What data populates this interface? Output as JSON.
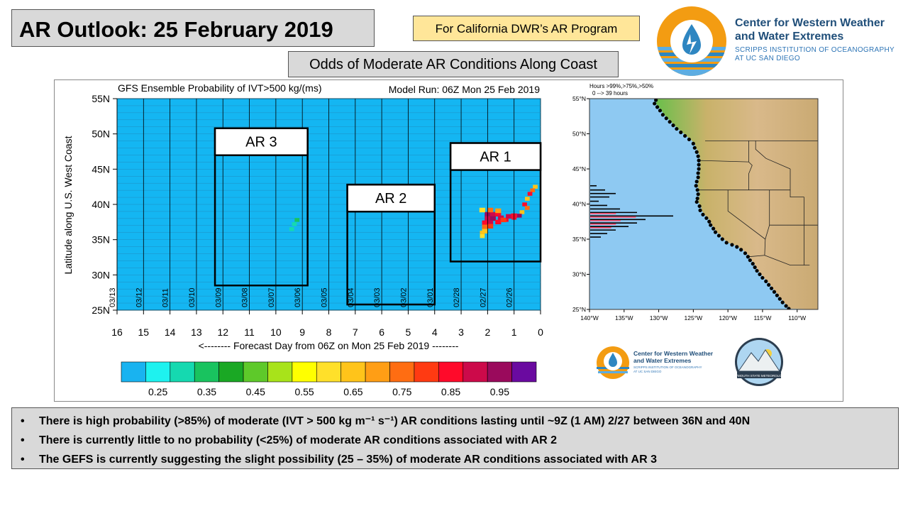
{
  "header": {
    "title": "AR Outlook: 25 February 2019",
    "program": "For California DWR’s AR Program",
    "subtitle": "Odds of Moderate AR Conditions Along Coast"
  },
  "logo": {
    "name_line1": "Center for Western Weather",
    "name_line2": "and Water Extremes",
    "sub_line1": "SCRIPPS INSTITUTION OF OCEANOGRAPHY",
    "sub_line2": "AT UC SAN DIEGO",
    "icon": "water-drop-sun-icon",
    "colors": {
      "orange": "#f39c12",
      "blue": "#2e86c1",
      "navy": "#1f4e79"
    }
  },
  "chart_data": [
    {
      "type": "heatmap",
      "title": "GFS Ensemble Probability of IVT>500 kg/(ms)",
      "model_run": "Model Run: 06Z Mon 25 Feb 2019",
      "xlabel": "<-------- Forecast Day from 06Z on Mon 25 Feb 2019 --------",
      "ylabel": "Latitude along U.S. West Coast",
      "xlim": [
        16,
        0
      ],
      "ylim": [
        25,
        55
      ],
      "x_ticks": [
        16,
        15,
        14,
        13,
        12,
        11,
        10,
        9,
        8,
        7,
        6,
        5,
        4,
        3,
        2,
        1,
        0
      ],
      "y_ticks": [
        "25N",
        "30N",
        "35N",
        "40N",
        "45N",
        "50N",
        "55N"
      ],
      "date_labels": [
        {
          "day": 12.0,
          "label": "03/13"
        },
        {
          "day": 11.0,
          "label": "03/12"
        },
        {
          "day": 10.0,
          "label": "03/11"
        },
        {
          "day": 9.0,
          "label": "03/10"
        },
        {
          "day": 8.0,
          "label": "03/09"
        },
        {
          "day": 7.0,
          "label": "03/08"
        },
        {
          "day": 6.0,
          "label": "03/07"
        },
        {
          "day": 5.0,
          "label": "03/06"
        },
        {
          "day": 4.0,
          "label": "03/05"
        },
        {
          "day": 3.0,
          "label": "03/04"
        },
        {
          "day": 2.0,
          "label": "03/03"
        },
        {
          "day": 1.0,
          "label": "03/02"
        },
        {
          "day": 0.0,
          "label": "03/01"
        },
        {
          "day": -1.0,
          "label": "02/28"
        },
        {
          "day": -2.0,
          "label": "02/27"
        },
        {
          "day": -3.0,
          "label": "02/26"
        }
      ],
      "background_color": "#14b6f2",
      "grid": true,
      "boxes": [
        {
          "label": "AR 3",
          "day_from": 12.3,
          "day_to": 8.8,
          "lat_from": 28.5,
          "lat_to": 50.8
        },
        {
          "label": "AR 2",
          "day_from": 7.3,
          "day_to": 4.0,
          "lat_from": 25.8,
          "lat_to": 42.8
        },
        {
          "label": "AR 1",
          "day_from": 3.4,
          "day_to": 0.0,
          "lat_from": 31.9,
          "lat_to": 48.7
        }
      ],
      "cells": [
        {
          "day": 9.3,
          "lat": 37.2,
          "p": 0.3
        },
        {
          "day": 9.2,
          "lat": 37.8,
          "p": 0.35
        },
        {
          "day": 9.4,
          "lat": 36.5,
          "p": 0.3
        },
        {
          "day": 0.2,
          "lat": 42.5,
          "p": 0.65
        },
        {
          "day": 0.3,
          "lat": 42.0,
          "p": 0.75
        },
        {
          "day": 0.4,
          "lat": 41.5,
          "p": 0.85
        },
        {
          "day": 0.5,
          "lat": 40.8,
          "p": 0.65
        },
        {
          "day": 0.6,
          "lat": 40.0,
          "p": 0.85
        },
        {
          "day": 0.5,
          "lat": 39.5,
          "p": 0.75
        },
        {
          "day": 0.7,
          "lat": 38.9,
          "p": 0.65
        },
        {
          "day": 0.8,
          "lat": 38.4,
          "p": 0.95
        },
        {
          "day": 1.0,
          "lat": 38.1,
          "p": 0.85
        },
        {
          "day": 1.3,
          "lat": 37.8,
          "p": 0.85
        },
        {
          "day": 1.6,
          "lat": 37.5,
          "p": 0.75
        },
        {
          "day": 1.9,
          "lat": 37.2,
          "p": 0.65
        },
        {
          "day": 2.1,
          "lat": 36.6,
          "p": 0.55
        },
        {
          "day": 2.2,
          "lat": 36.0,
          "p": 0.65
        },
        {
          "day": 2.2,
          "lat": 35.5,
          "p": 0.6
        }
      ],
      "colorbar": {
        "colors": [
          "#19b3f0",
          "#1ef2ef",
          "#15d9b0",
          "#19c35f",
          "#1aa824",
          "#5ec92a",
          "#a8e31a",
          "#ffff00",
          "#ffe02a",
          "#ffc41a",
          "#ff9e15",
          "#ff6d12",
          "#ff3a12",
          "#ff0a2a",
          "#cc0a4a",
          "#9a0a5c",
          "#6a0aa0"
        ],
        "tick_labels": [
          "0.25",
          "0.35",
          "0.45",
          "0.55",
          "0.65",
          "0.75",
          "0.85",
          "0.95"
        ]
      }
    },
    {
      "type": "bar",
      "title": "Hours >99%,>75%,>50%",
      "subtitle": "0 --> 39 hours",
      "x_ticks": [
        "140°W",
        "135°W",
        "130°W",
        "125°W",
        "120°W",
        "115°W",
        "110°W"
      ],
      "y_ticks": [
        "25°N",
        "30°N",
        "35°N",
        "40°N",
        "45°N",
        "50°N",
        "55°N"
      ],
      "ylim": [
        25,
        55
      ],
      "xlim": [
        -140,
        -107
      ],
      "bars": [
        {
          "lat": 42.6,
          "hours": 3,
          "color": "#000000"
        },
        {
          "lat": 42.0,
          "hours": 7,
          "color": "#000000"
        },
        {
          "lat": 41.5,
          "hours": 12,
          "color": "#000000"
        },
        {
          "lat": 41.0,
          "hours": 9,
          "color": "#000000"
        },
        {
          "lat": 40.4,
          "hours": 4,
          "color": "#000000"
        },
        {
          "lat": 39.8,
          "hours": 8,
          "color": "#000000"
        },
        {
          "lat": 39.3,
          "hours": 14,
          "color": "#000000"
        },
        {
          "lat": 38.8,
          "hours": 22,
          "color": "#000000"
        },
        {
          "lat": 38.3,
          "hours": 39,
          "color": "#000000"
        },
        {
          "lat": 37.8,
          "hours": 26,
          "color": "#000000"
        },
        {
          "lat": 37.3,
          "hours": 22,
          "color": "#000000"
        },
        {
          "lat": 36.8,
          "hours": 18,
          "color": "#000000"
        },
        {
          "lat": 36.3,
          "hours": 12,
          "color": "#000000"
        },
        {
          "lat": 35.8,
          "hours": 8,
          "color": "#000000"
        },
        {
          "lat": 35.3,
          "hours": 5,
          "color": "#000000"
        }
      ],
      "coastline_points": [
        [
          -130.2,
          54.8
        ],
        [
          -130.4,
          54.3
        ],
        [
          -130.0,
          53.8
        ],
        [
          -129.6,
          53.3
        ],
        [
          -129.2,
          52.7
        ],
        [
          -128.7,
          52.2
        ],
        [
          -128.2,
          51.7
        ],
        [
          -127.7,
          51.2
        ],
        [
          -127.2,
          50.7
        ],
        [
          -126.6,
          50.2
        ],
        [
          -126.0,
          49.7
        ],
        [
          -125.4,
          49.2
        ],
        [
          -124.8,
          48.6
        ],
        [
          -124.6,
          48.0
        ],
        [
          -124.3,
          47.4
        ],
        [
          -124.1,
          46.8
        ],
        [
          -124.0,
          46.2
        ],
        [
          -124.0,
          45.6
        ],
        [
          -124.0,
          45.0
        ],
        [
          -124.1,
          44.4
        ],
        [
          -124.1,
          43.8
        ],
        [
          -124.3,
          43.2
        ],
        [
          -124.4,
          42.6
        ],
        [
          -124.2,
          42.0
        ],
        [
          -124.1,
          41.4
        ],
        [
          -124.2,
          40.8
        ],
        [
          -124.3,
          40.3
        ],
        [
          -123.9,
          39.7
        ],
        [
          -123.8,
          39.1
        ],
        [
          -123.4,
          38.5
        ],
        [
          -122.9,
          38.0
        ],
        [
          -122.5,
          37.5
        ],
        [
          -122.3,
          37.0
        ],
        [
          -121.9,
          36.5
        ],
        [
          -121.6,
          36.0
        ],
        [
          -121.1,
          35.5
        ],
        [
          -120.6,
          35.0
        ],
        [
          -120.0,
          34.5
        ],
        [
          -119.2,
          34.2
        ],
        [
          -118.5,
          33.9
        ],
        [
          -117.9,
          33.5
        ],
        [
          -117.3,
          33.0
        ],
        [
          -116.9,
          32.5
        ],
        [
          -116.6,
          32.0
        ],
        [
          -116.2,
          31.5
        ],
        [
          -115.9,
          31.0
        ],
        [
          -115.6,
          30.5
        ],
        [
          -115.2,
          30.0
        ],
        [
          -114.8,
          29.5
        ],
        [
          -114.3,
          29.0
        ],
        [
          -113.9,
          28.5
        ],
        [
          -113.5,
          28.0
        ],
        [
          -113.1,
          27.5
        ],
        [
          -112.7,
          27.0
        ],
        [
          -112.3,
          26.5
        ],
        [
          -111.9,
          26.0
        ],
        [
          -111.4,
          25.5
        ],
        [
          -111.0,
          25.1
        ]
      ]
    }
  ],
  "inset_logos": [
    {
      "name_line1": "Center for Western Weather",
      "name_line2": "and Water Extremes",
      "sub_line1": "SCRIPPS INSTITUTION OF OCEANOGRAPHY",
      "sub_line2": "AT UC SAN DIEGO"
    },
    {
      "label": "PLYMOUTH STATE METEOROLOGY",
      "icon": "mountain-sun-icon"
    }
  ],
  "notes": [
    "There is high probability  (>85%) of moderate (IVT > 500 kg m⁻¹ s⁻¹) AR conditions lasting until ~9Z (1 AM) 2/27 between 36N and 40N",
    "There is currently little to no probability  (<25%) of moderate AR conditions associated with AR 2",
    "The GEFS is currently suggesting the slight possibility  (25 – 35%) of moderate AR conditions associated with AR 3"
  ]
}
